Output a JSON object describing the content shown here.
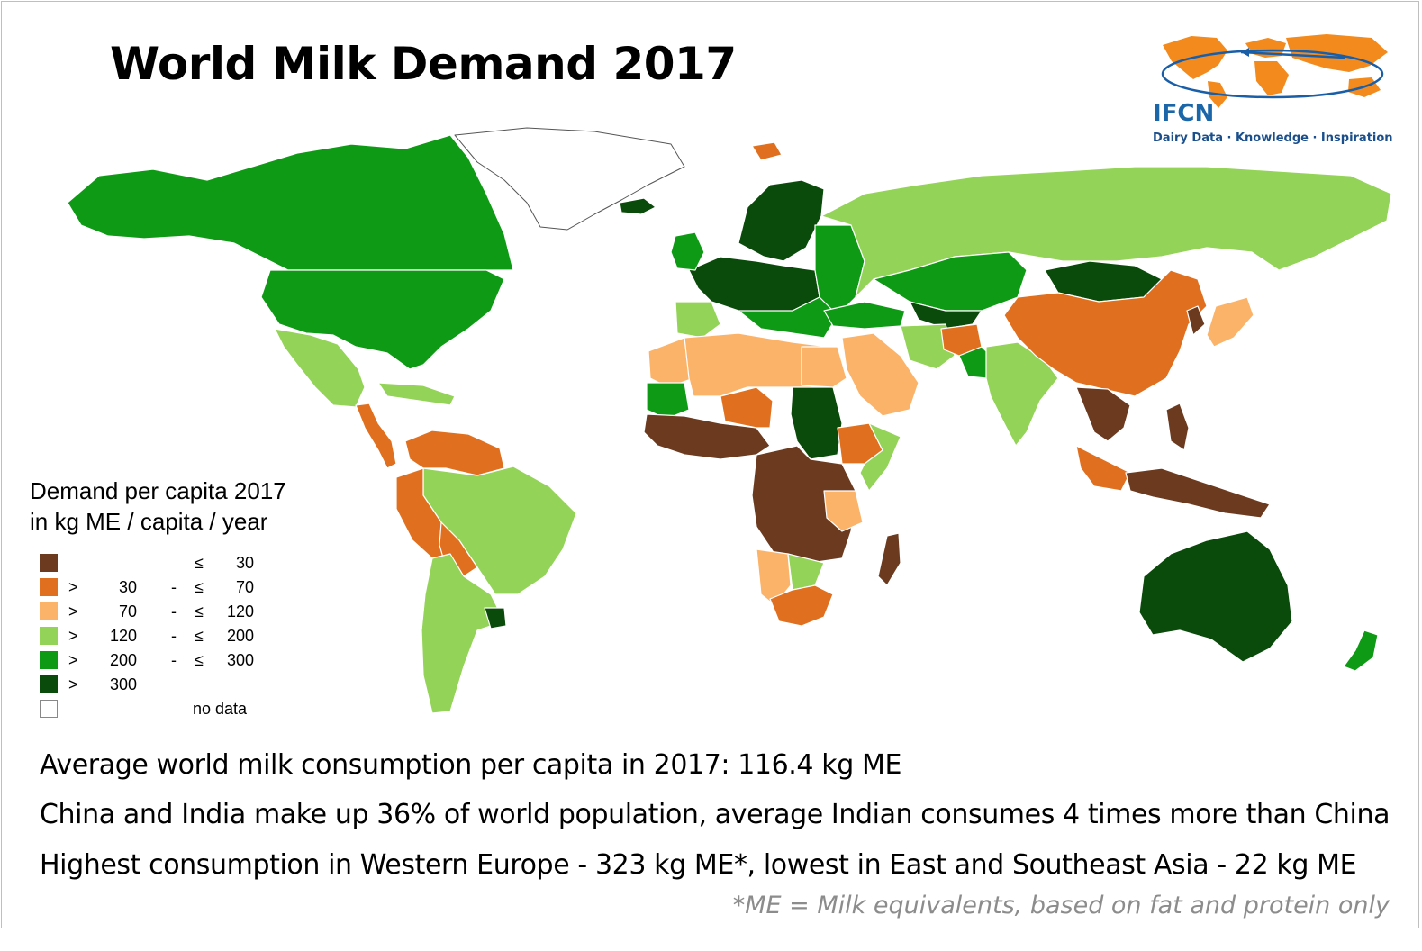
{
  "title": "World Milk Demand 2017",
  "logo": {
    "name": "IFCN",
    "tagline": "Dairy Data · Knowledge · Inspiration"
  },
  "legend": {
    "title_line1": "Demand per capita 2017",
    "title_line2": "in kg ME / capita / year",
    "classes": [
      {
        "gt": "",
        "low": "",
        "dash": "",
        "le": "≤",
        "high": "30",
        "color": "#6b3a1f"
      },
      {
        "gt": ">",
        "low": "30",
        "dash": "-",
        "le": "≤",
        "high": "70",
        "color": "#e0701f"
      },
      {
        "gt": ">",
        "low": "70",
        "dash": "-",
        "le": "≤",
        "high": "120",
        "color": "#fbb36a"
      },
      {
        "gt": ">",
        "low": "120",
        "dash": "-",
        "le": "≤",
        "high": "200",
        "color": "#93d358"
      },
      {
        "gt": ">",
        "low": "200",
        "dash": "-",
        "le": "≤",
        "high": "300",
        "color": "#0f9a15"
      },
      {
        "gt": ">",
        "low": "300",
        "dash": "",
        "le": "",
        "high": "",
        "color": "#0a4a0a"
      }
    ],
    "no_data_label": "no data",
    "no_data_color": "#ffffff"
  },
  "notes": [
    "Average world milk consumption per capita in 2017: 116.4 kg ME",
    "China and India make up 36% of world population, average Indian consumes 4 times more than China",
    "Highest consumption in Western Europe - 323 kg ME*, lowest in East and Southeast Asia - 22 kg ME"
  ],
  "footnote": "*ME = Milk equivalents, based on fat and protein only",
  "colors": {
    "logo_land": "#f28a1e",
    "logo_orbit": "#1a5ea8",
    "border": "#bfbfbf"
  }
}
